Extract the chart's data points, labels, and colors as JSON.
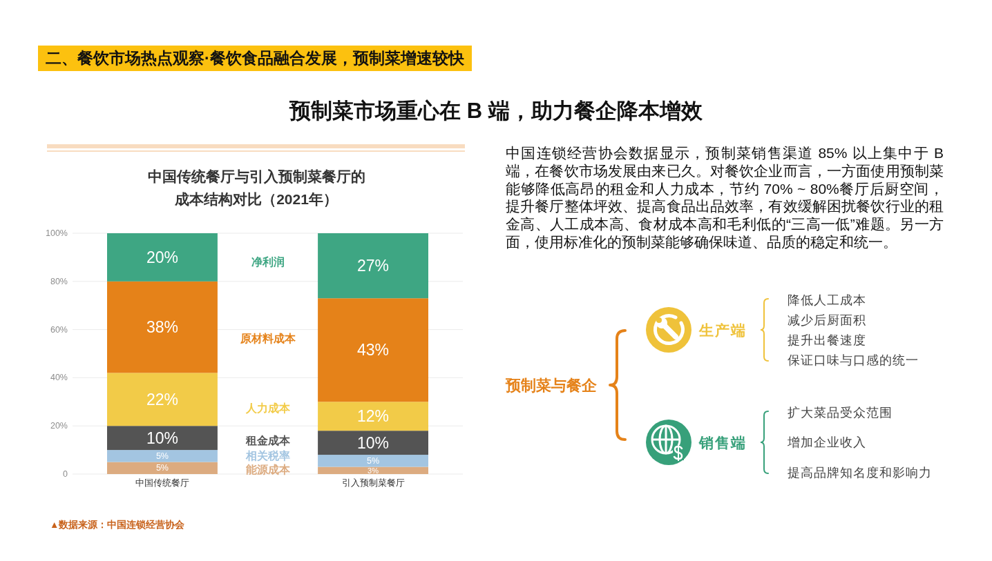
{
  "chart_data": [
    {
      "type": "other",
      "title": "预制菜市场重心在 B 端，助力餐企降本增效",
      "annotations": [
        "二、餐饮市场热点观察·餐饮食品融合发展，预制菜增速较快"
      ]
    },
    {
      "type": "bar",
      "title": "中国传统餐厅与引入预制菜餐厅的成本结构对比（2021年）",
      "categories": [
        "中国传统餐厅",
        "引入预制菜餐厅"
      ],
      "stacked": true,
      "series": [
        {
          "name": "能源成本",
          "color": "#dcab80",
          "values": [
            5,
            3
          ],
          "value_labels": [
            "5%",
            "3%"
          ]
        },
        {
          "name": "相关税率",
          "color": "#a3c5e1",
          "values": [
            5,
            5
          ],
          "value_labels": [
            "5%",
            "5%"
          ]
        },
        {
          "name": "租金成本",
          "color": "#545454",
          "values": [
            10,
            10
          ],
          "value_labels": [
            "10%",
            "10%"
          ]
        },
        {
          "name": "人力成本",
          "color": "#f2cb48",
          "values": [
            22,
            12
          ],
          "value_labels": [
            "22%",
            "12%"
          ]
        },
        {
          "name": "原材料成本",
          "color": "#e58219",
          "values": [
            38,
            43
          ],
          "value_labels": [
            "38%",
            "43%"
          ]
        },
        {
          "name": "净利润",
          "color": "#3ea683",
          "values": [
            20,
            27
          ],
          "value_labels": [
            "20%",
            "27%"
          ]
        }
      ],
      "ylim": [
        0,
        100
      ],
      "yticks": [
        0,
        {
          "value": 20,
          "label": "20%"
        },
        {
          "value": 40,
          "label": "40%"
        },
        {
          "value": 60,
          "label": "60%"
        },
        {
          "value": 80,
          "label": "80%"
        },
        {
          "value": 100,
          "label": "100%"
        }
      ],
      "grid": "y",
      "annotations": [
        "▲数据来源：中国连锁经营协会"
      ]
    },
    {
      "type": "other",
      "annotations": [
        "中国连锁经营协会数据显示，预制菜销售渠道 85% 以上集中于 B 端，在餐饮市场发展由来已久。对餐饮企业而言，一方面使用预制菜能够降低高昂的租金和人力成本，节约 70% ~ 80%餐厅后厨空间，提升餐厅整体坪效、提高食品出品效率，有效缓解困扰餐饮行业的租金高、人工成本高、食材成本高和毛利低的“三高一低”难题。另一方面，使用标准化的预制菜能够确保味道、品质的稳定和统一。"
      ]
    },
    {
      "type": "other",
      "title": "预制菜与餐企"
    },
    {
      "type": "other",
      "title": "生产端",
      "annotations": [
        "降低人工成本",
        "减少后厨面积",
        "提升出餐速度",
        "保证口味与口感的统一"
      ]
    },
    {
      "type": "other",
      "title": "销售端",
      "annotations": [
        "扩大菜品受众范围",
        "增加企业收入",
        "提高品牌知名度和影响力"
      ]
    }
  ]
}
